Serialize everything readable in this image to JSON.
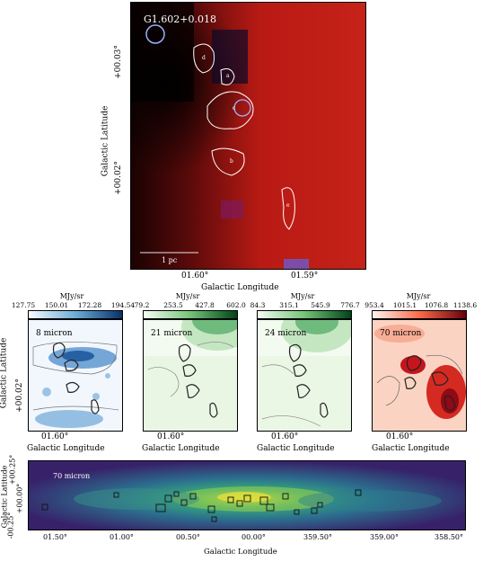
{
  "top": {
    "source_name": "G1.602+0.018",
    "ylabel": "Galactic Latitude",
    "xlabel": "Galactic Longitude",
    "yticks": [
      "+00.03°",
      "+00.02°"
    ],
    "xticks": [
      "01.60°",
      "01.59°"
    ],
    "scalebar": "1 pc",
    "clump_labels": [
      "d",
      "a",
      "c",
      "b",
      "e"
    ]
  },
  "middle": {
    "ylabel": "Galactic Latitude",
    "ytick": "+00.02°",
    "panels": [
      {
        "name": "8 micron",
        "unit": "MJy/sr",
        "ticks": [
          "127.75",
          "150.01",
          "172.28",
          "194.54"
        ],
        "xtick": "01.60°",
        "xlabel": "Galactic Longitude"
      },
      {
        "name": "21 micron",
        "unit": "MJy/sr",
        "ticks": [
          "79.2",
          "253.5",
          "427.8",
          "602.0"
        ],
        "xtick": "01.60°",
        "xlabel": "Galactic Longitude"
      },
      {
        "name": "24 micron",
        "unit": "MJy/sr",
        "ticks": [
          "84.3",
          "315.1",
          "545.9",
          "776.7"
        ],
        "xtick": "01.60°",
        "xlabel": "Galactic Longitude"
      },
      {
        "name": "70 micron",
        "unit": "MJy/sr",
        "ticks": [
          "953.4",
          "1015.1",
          "1076.8",
          "1138.6"
        ],
        "xtick": "01.60°",
        "xlabel": "Galactic Longitude"
      }
    ]
  },
  "bottom": {
    "panel_label": "70 micron",
    "ylabel": "Galactic Latitude",
    "xlabel": "Galactic Longitude",
    "yticks": [
      "+00.25°",
      "+00.00°",
      "-00.25°"
    ],
    "xticks": [
      "01.50°",
      "01.00°",
      "00.50°",
      "00.00°",
      "359.50°",
      "359.00°",
      "358.50°"
    ]
  },
  "colors": {
    "top_image": "#b01818",
    "contour_top": "#ffffff",
    "cb8": "#2166ac",
    "cb21": "#1b7837",
    "cb24": "#1b7837",
    "cb70": "#b2182b"
  }
}
